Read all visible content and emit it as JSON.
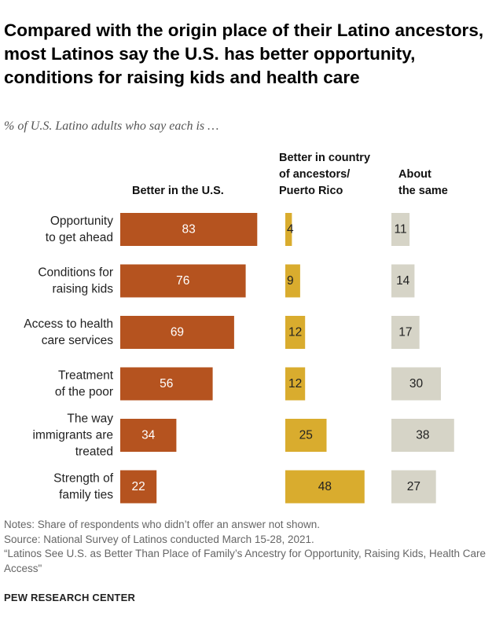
{
  "title": "Compared with the origin place of their Latino ancestors, most Latinos say the U.S. has better opportunity, conditions for raising kids and health care",
  "subtitle": "% of U.S. Latino adults who say each is …",
  "chart_data": {
    "type": "bar",
    "orientation": "horizontal",
    "title": "Compared with the origin place of their Latino ancestors, most Latinos say the U.S. has better opportunity, conditions for raising kids and health care",
    "subtitle": "% of U.S. Latino adults who say each is …",
    "categories": [
      "Opportunity to get ahead",
      "Conditions for raising kids",
      "Access to health care services",
      "Treatment of the poor",
      "The way immigrants are treated",
      "Strength of family ties"
    ],
    "category_lines": [
      [
        "Opportunity",
        "to get ahead"
      ],
      [
        "Conditions for",
        "raising kids"
      ],
      [
        "Access to health",
        "care services"
      ],
      [
        "Treatment",
        "of the poor"
      ],
      [
        "The way",
        "immigrants are",
        "treated"
      ],
      [
        "Strength of",
        "family ties"
      ]
    ],
    "series": [
      {
        "name": "Better in the U.S.",
        "header_lines": [
          "Better in the U.S."
        ],
        "color": "#B5531F",
        "label_color": "#ffffff",
        "values": [
          83,
          76,
          69,
          56,
          34,
          22
        ]
      },
      {
        "name": "Better in country of ancestors/ Puerto Rico",
        "header_lines": [
          "Better in country",
          "of ancestors/",
          "Puerto Rico"
        ],
        "color": "#D9AC2E",
        "label_color": "#222222",
        "values": [
          4,
          9,
          12,
          12,
          25,
          48
        ]
      },
      {
        "name": "About the same",
        "header_lines": [
          "About",
          "the same"
        ],
        "color": "#D6D4C7",
        "label_color": "#222222",
        "values": [
          11,
          14,
          17,
          30,
          38,
          27
        ]
      }
    ],
    "unit": "%"
  },
  "notes": {
    "note": "Notes: Share of respondents who didn’t offer an answer not shown.",
    "source": "Source: National Survey of Latinos conducted March 15-28, 2021.",
    "report": "“Latinos See U.S. as Better Than Place of Family’s Ancestry for Opportunity, Raising Kids, Health Care Access\""
  },
  "org": "PEW RESEARCH CENTER"
}
